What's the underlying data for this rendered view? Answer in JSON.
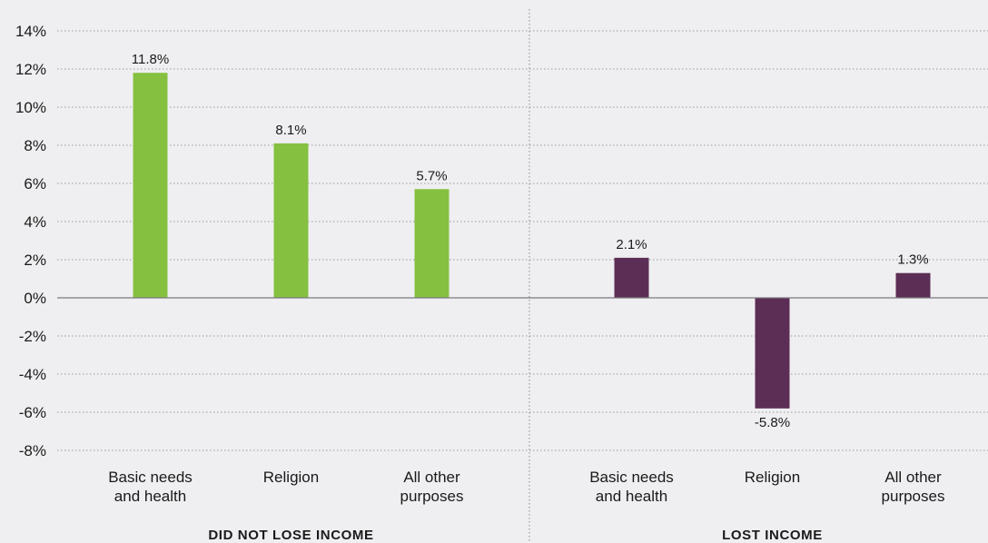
{
  "chart_data": {
    "type": "bar",
    "title": "",
    "xlabel": "",
    "ylabel": "",
    "ylim": [
      -8,
      14
    ],
    "y_ticks": [
      14,
      12,
      10,
      8,
      6,
      4,
      2,
      0,
      -2,
      -4,
      -6,
      -8
    ],
    "y_tick_labels": [
      "14%",
      "12%",
      "10%",
      "8%",
      "6%",
      "4%",
      "2%",
      "0%",
      "-2%",
      "-4%",
      "-6%",
      "-8%"
    ],
    "grid": "horizontal dotted",
    "legend": "none",
    "groups": [
      {
        "name": "DID NOT LOSE INCOME",
        "color": "#86c041",
        "bars": [
          {
            "category": [
              "Basic needs",
              "and health"
            ],
            "value": 11.8,
            "label": "11.8%"
          },
          {
            "category": [
              "Religion"
            ],
            "value": 8.1,
            "label": "8.1%"
          },
          {
            "category": [
              "All other",
              "purposes"
            ],
            "value": 5.7,
            "label": "5.7%"
          }
        ]
      },
      {
        "name": "LOST INCOME",
        "color": "#5c2e55",
        "bars": [
          {
            "category": [
              "Basic needs",
              "and health"
            ],
            "value": 2.1,
            "label": "2.1%"
          },
          {
            "category": [
              "Religion"
            ],
            "value": -5.8,
            "label": "-5.8%"
          },
          {
            "category": [
              "All other",
              "purposes"
            ],
            "value": 1.3,
            "label": "1.3%"
          }
        ]
      }
    ]
  }
}
